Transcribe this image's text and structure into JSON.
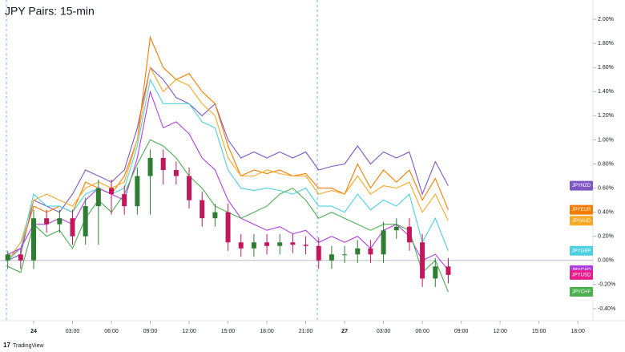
{
  "chart_data": {
    "type": "line",
    "title": "JPY Pairs: 15-min",
    "footer": "TradingView",
    "categories": [
      null,
      null,
      "24",
      null,
      null,
      "03:00",
      null,
      null,
      "06:00",
      null,
      null,
      "09:00",
      null,
      null,
      "12:00",
      null,
      null,
      "15:00",
      null,
      null,
      "18:00",
      null,
      null,
      "21:00",
      null,
      null,
      "27",
      null,
      null,
      "03:00",
      null,
      null,
      "06:00",
      null,
      null,
      "09:00",
      null,
      null,
      "12:00",
      null,
      null,
      "15:00",
      null,
      null,
      "18:00",
      null
    ],
    "ylim": [
      -0.5,
      2.16
    ],
    "yticks": [
      {
        "value": -0.4,
        "label": "-0.40%"
      },
      {
        "value": -0.2,
        "label": "-0.20%"
      },
      {
        "value": 0,
        "label": "0.00%"
      },
      {
        "value": 0.2,
        "label": "0.20%"
      },
      {
        "value": 0.4,
        "label": "0.40%"
      },
      {
        "value": 0.6,
        "label": "0.60%"
      },
      {
        "value": 0.8,
        "label": "0.80%"
      },
      {
        "value": 1,
        "label": "1.00%"
      },
      {
        "value": 1.2,
        "label": "1.20%"
      },
      {
        "value": 1.4,
        "label": "1.40%"
      },
      {
        "value": 1.6,
        "label": "1.60%"
      },
      {
        "value": 1.8,
        "label": "1.80%"
      },
      {
        "value": 2,
        "label": "2.00%"
      }
    ],
    "series": [
      {
        "name": "JPYNZD",
        "color": "#7e57c2",
        "values": [
          0.0,
          0.05,
          0.5,
          0.45,
          0.4,
          0.55,
          0.75,
          0.7,
          0.65,
          0.75,
          1.1,
          1.6,
          1.5,
          1.35,
          1.3,
          1.2,
          1.3,
          1.0,
          0.85,
          0.9,
          0.85,
          0.9,
          0.85,
          0.9,
          0.75,
          0.78,
          0.8,
          0.95,
          0.8,
          0.9,
          0.85,
          0.9,
          0.55,
          0.82,
          0.62,
          null,
          null,
          null,
          null,
          null,
          null,
          null,
          null,
          null,
          null,
          null
        ]
      },
      {
        "name": "JPYEUR",
        "color": "#f57c00",
        "values": [
          0.02,
          0.1,
          0.45,
          0.4,
          0.45,
          0.4,
          0.65,
          0.6,
          0.55,
          0.7,
          1.0,
          1.85,
          1.6,
          1.5,
          1.55,
          1.4,
          1.3,
          0.95,
          0.7,
          0.75,
          0.72,
          0.75,
          0.7,
          0.72,
          0.6,
          0.6,
          0.55,
          0.8,
          0.6,
          0.75,
          0.65,
          0.75,
          0.5,
          0.68,
          0.42,
          null,
          null,
          null,
          null,
          null,
          null,
          null,
          null,
          null,
          null,
          null
        ]
      },
      {
        "name": "JPYAUD",
        "color": "#f9a825",
        "values": [
          0.0,
          0.15,
          0.5,
          0.55,
          0.5,
          0.45,
          0.6,
          0.65,
          0.6,
          0.65,
          1.0,
          1.6,
          1.4,
          1.5,
          1.45,
          1.3,
          1.2,
          0.85,
          0.7,
          0.7,
          0.75,
          0.72,
          0.7,
          0.7,
          0.55,
          0.58,
          0.55,
          0.7,
          0.55,
          0.62,
          0.6,
          0.65,
          0.4,
          0.55,
          0.33,
          null,
          null,
          null,
          null,
          null,
          null,
          null,
          null,
          null,
          null,
          null
        ]
      },
      {
        "name": "JPYGBP",
        "color": "#4dd0e1",
        "values": [
          0.0,
          0.1,
          0.55,
          0.45,
          0.45,
          0.4,
          0.55,
          0.6,
          0.55,
          0.6,
          0.95,
          1.5,
          1.3,
          1.3,
          1.3,
          1.15,
          1.1,
          0.75,
          0.6,
          0.58,
          0.6,
          0.58,
          0.55,
          0.6,
          0.45,
          0.45,
          0.4,
          0.55,
          0.42,
          0.5,
          0.45,
          0.55,
          0.15,
          0.35,
          0.08,
          null,
          null,
          null,
          null,
          null,
          null,
          null,
          null,
          null,
          null,
          null
        ]
      },
      {
        "name": "JPYCAD",
        "color": "#b040e0",
        "values": [
          0.05,
          0.1,
          0.3,
          0.3,
          0.35,
          0.3,
          0.5,
          0.6,
          0.55,
          0.5,
          0.85,
          1.4,
          1.1,
          1.15,
          1.05,
          0.85,
          0.75,
          0.5,
          0.35,
          0.3,
          0.25,
          0.28,
          0.22,
          0.25,
          0.15,
          0.2,
          0.15,
          0.2,
          0.1,
          0.25,
          0.3,
          0.2,
          0.0,
          0.05,
          -0.08,
          null,
          null,
          null,
          null,
          null,
          null,
          null,
          null,
          null,
          null,
          null
        ]
      },
      {
        "name": "JPYCHF",
        "color": "#4caf50",
        "values": [
          -0.05,
          -0.1,
          0.3,
          0.2,
          0.25,
          0.1,
          0.35,
          0.5,
          0.4,
          0.55,
          0.8,
          1.0,
          0.95,
          0.85,
          0.7,
          0.6,
          0.45,
          0.4,
          0.35,
          0.4,
          0.45,
          0.55,
          0.6,
          0.5,
          0.35,
          0.4,
          0.35,
          0.3,
          0.25,
          0.3,
          0.3,
          0.25,
          -0.1,
          0.0,
          -0.26,
          null,
          null,
          null,
          null,
          null,
          null,
          null,
          null,
          null,
          null,
          null
        ]
      }
    ],
    "candles": {
      "name": "JPYUSD",
      "color": "#e91e8c",
      "up_color": "#2e7d32",
      "down_color": "#c2185b",
      "open": [
        0.0,
        0.05,
        0.0,
        0.35,
        0.3,
        0.35,
        0.2,
        0.45,
        0.6,
        0.55,
        0.45,
        0.7,
        0.85,
        0.75,
        0.7,
        0.5,
        0.35,
        0.4,
        0.15,
        0.1,
        0.15,
        0.12,
        0.15,
        0.13,
        0.12,
        0.0,
        0.05,
        0.05,
        0.1,
        0.05,
        0.25,
        0.28,
        0.15,
        -0.15,
        -0.05,
        null,
        null,
        null,
        null,
        null,
        null,
        null,
        null,
        null,
        null,
        null
      ],
      "high": [
        0.08,
        0.1,
        0.42,
        0.42,
        0.42,
        0.42,
        0.52,
        0.67,
        0.67,
        0.62,
        0.77,
        0.92,
        0.92,
        0.82,
        0.77,
        0.57,
        0.47,
        0.47,
        0.22,
        0.22,
        0.22,
        0.22,
        0.22,
        0.2,
        0.19,
        0.12,
        0.12,
        0.17,
        0.17,
        0.32,
        0.35,
        0.35,
        0.22,
        0.02,
        0.02,
        null,
        null,
        null,
        null,
        null,
        null,
        null,
        null,
        null,
        null,
        null
      ],
      "low": [
        -0.07,
        -0.07,
        -0.07,
        0.23,
        0.23,
        0.13,
        0.13,
        0.13,
        0.38,
        0.38,
        0.38,
        0.38,
        0.63,
        0.63,
        0.43,
        0.28,
        0.28,
        0.08,
        0.03,
        0.03,
        0.05,
        0.05,
        0.06,
        0.05,
        -0.07,
        -0.07,
        -0.02,
        -0.02,
        -0.02,
        -0.02,
        0.18,
        0.08,
        -0.22,
        -0.22,
        -0.19,
        null,
        null,
        null,
        null,
        null,
        null,
        null,
        null,
        null,
        null,
        null
      ],
      "close": [
        0.05,
        0.0,
        0.35,
        0.3,
        0.35,
        0.2,
        0.45,
        0.6,
        0.55,
        0.45,
        0.7,
        0.85,
        0.75,
        0.7,
        0.5,
        0.35,
        0.4,
        0.15,
        0.1,
        0.15,
        0.12,
        0.15,
        0.13,
        0.12,
        0.0,
        0.05,
        0.05,
        0.1,
        0.05,
        0.25,
        0.28,
        0.15,
        -0.15,
        -0.05,
        -0.12,
        null,
        null,
        null,
        null,
        null,
        null,
        null,
        null,
        null,
        null,
        null
      ]
    }
  }
}
